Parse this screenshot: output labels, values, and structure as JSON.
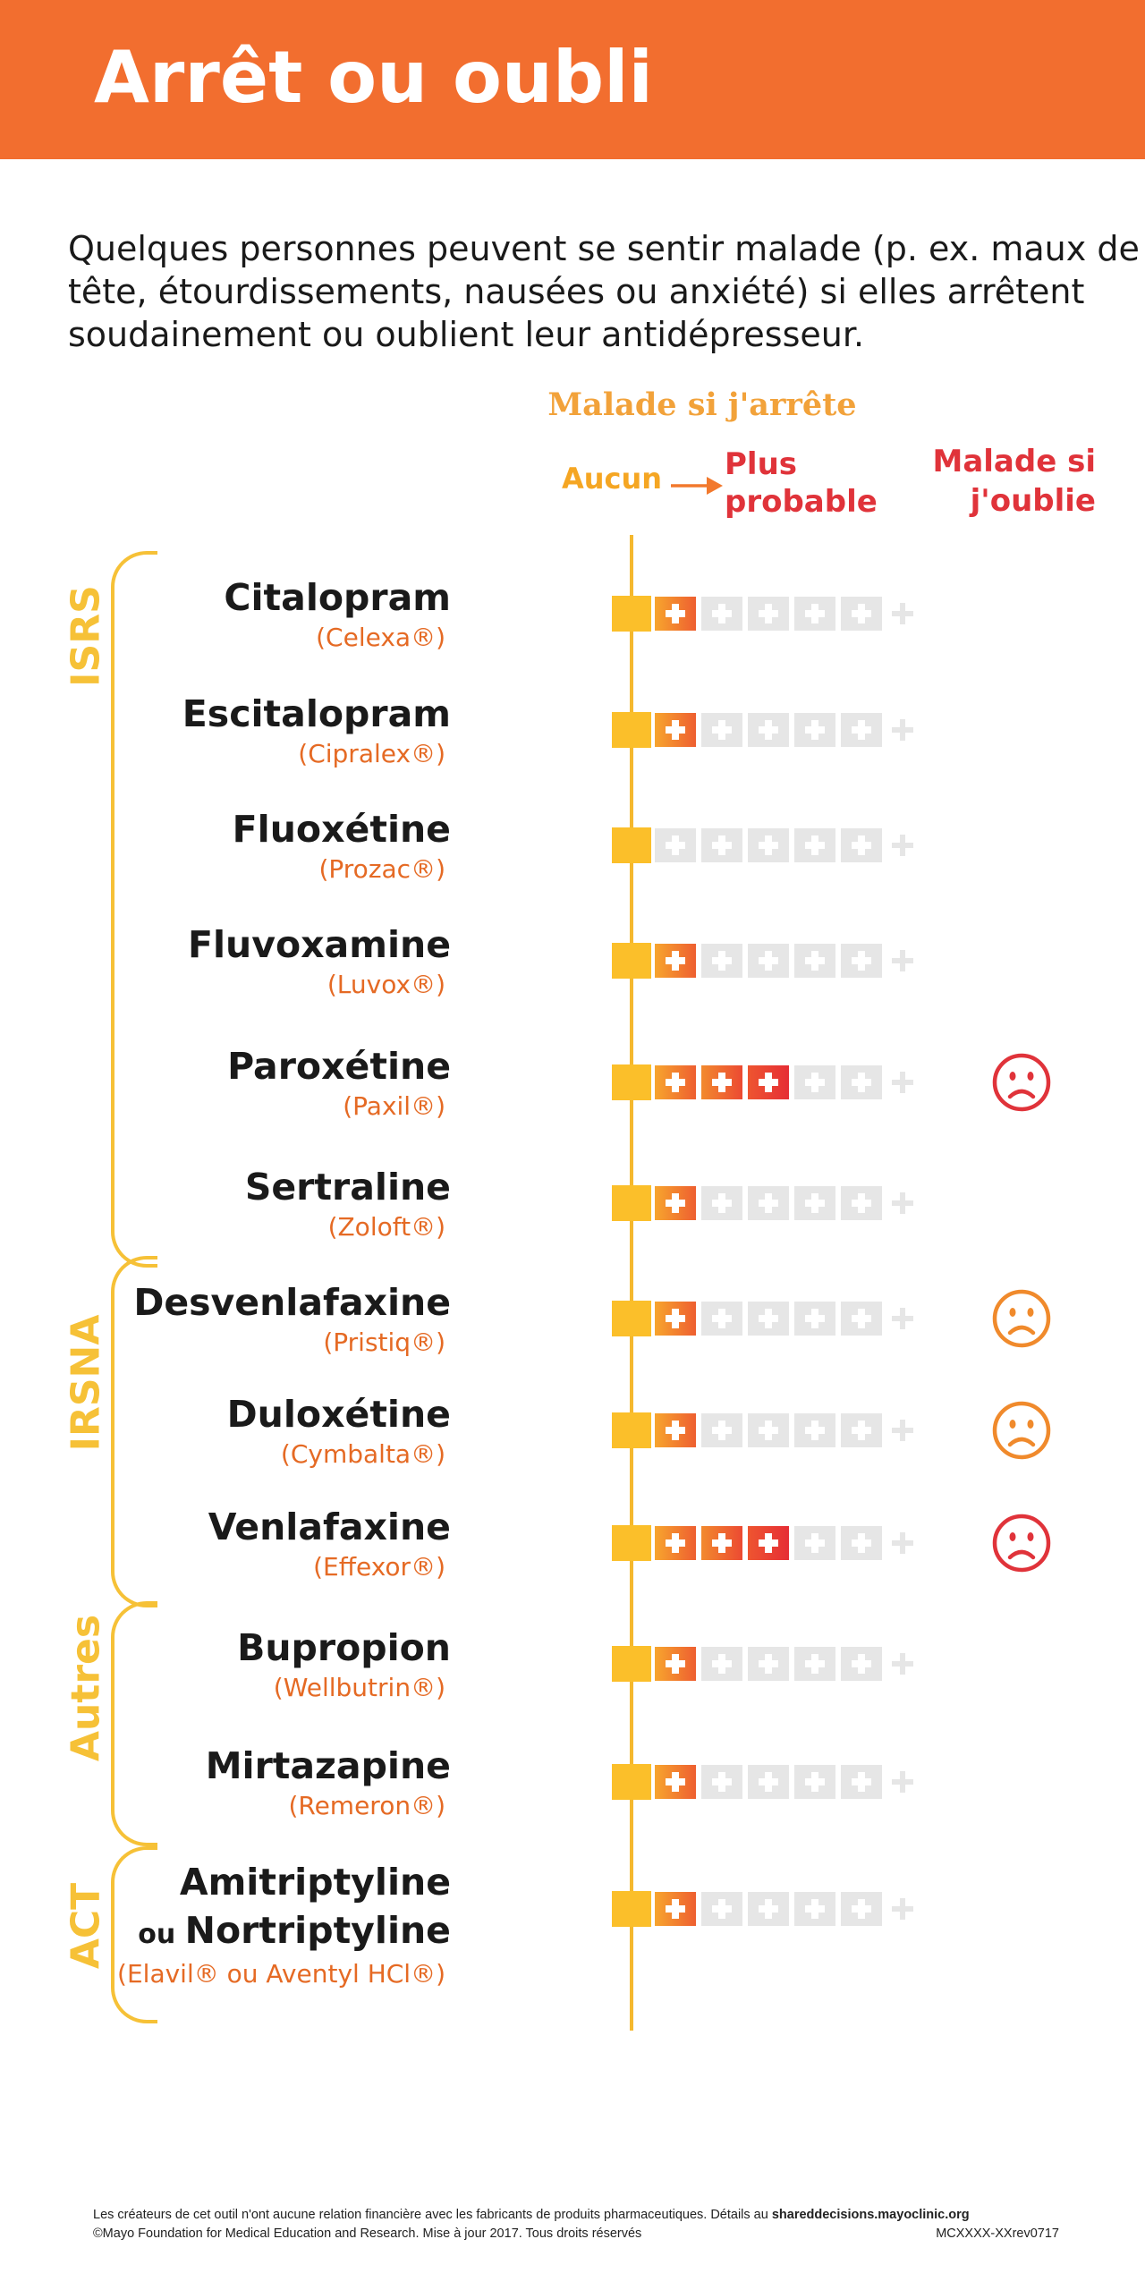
{
  "title": "Arrêt ou oubli",
  "intro": "Quelques personnes peuvent se sentir malade (p. ex. maux de tête, étourdissements, nausées ou anxiété) si elles arrêtent soudainement ou oublient leur antidépresseur.",
  "chart_data": {
    "type": "rating scale",
    "title": "Malade si j'arrête",
    "scale_min_label": "Aucun",
    "scale_max_label": "Plus probable",
    "forget_column_label": "Malade si j'oublie",
    "max_level": 5,
    "groups": [
      {
        "name": "ISRS",
        "drugs": [
          0,
          1,
          2,
          3,
          4,
          5
        ]
      },
      {
        "name": "IRSNA",
        "drugs": [
          6,
          7,
          8
        ]
      },
      {
        "name": "Autres",
        "drugs": [
          9,
          10
        ]
      },
      {
        "name": "ACT",
        "drugs": [
          11
        ]
      }
    ],
    "drugs": [
      {
        "name": "Citalopram",
        "brand": "(Celexa®)",
        "level": 1,
        "forget": "none"
      },
      {
        "name": "Escitalopram",
        "brand": "(Cipralex®)",
        "level": 1,
        "forget": "none"
      },
      {
        "name": "Fluoxétine",
        "brand": "(Prozac®)",
        "level": 0,
        "forget": "none"
      },
      {
        "name": "Fluvoxamine",
        "brand": "(Luvox®)",
        "level": 1,
        "forget": "none"
      },
      {
        "name": "Paroxétine",
        "brand": "(Paxil®)",
        "level": 3,
        "forget": "red-sad"
      },
      {
        "name": "Sertraline",
        "brand": "(Zoloft®)",
        "level": 1,
        "forget": "none"
      },
      {
        "name": "Desvenlafaxine",
        "brand": "(Pristiq®)",
        "level": 1,
        "forget": "orange-sad"
      },
      {
        "name": "Duloxétine",
        "brand": "(Cymbalta®)",
        "level": 1,
        "forget": "orange-sad"
      },
      {
        "name": "Venlafaxine",
        "brand": "(Effexor®)",
        "level": 3,
        "forget": "red-sad"
      },
      {
        "name": "Bupropion",
        "brand": "(Wellbutrin®)",
        "level": 1,
        "forget": "none"
      },
      {
        "name": "Mirtazapine",
        "brand": "(Remeron®)",
        "level": 1,
        "forget": "none"
      },
      {
        "name": "Amitriptyline",
        "name_connector": "ou",
        "name_second": "Nortriptyline",
        "brand": "(Elavil® ou Aventyl HCl®)",
        "level": 1,
        "forget": "none"
      }
    ]
  },
  "colors": {
    "header": "#f26e2f",
    "base_block": "#fbbf2a",
    "axis": "#f5b82e",
    "empty_cell": "#e6e6e6",
    "sad_red": "#e0333a",
    "sad_orange": "#f08a2c",
    "brand_text": "#e56a24"
  },
  "icons": {
    "filled_cell": "plus-box-icon",
    "empty_cell": "plus-box-empty-icon",
    "end": "plus-icon",
    "forget": "sad-face-icon",
    "arrow": "arrow-right-icon"
  },
  "footer": {
    "line1_text": "Les créateurs de cet outil n'ont aucune relation financière avec les fabricants de produits pharmaceutiques.  Détails au",
    "line1_link": "shareddecisions.mayoclinic.org",
    "line2_text": "©Mayo Foundation for Medical Education and Research.  Mise à jour 2017.  Tous droits réservés",
    "line2_code": "MCXXXX-XXrev0717"
  }
}
